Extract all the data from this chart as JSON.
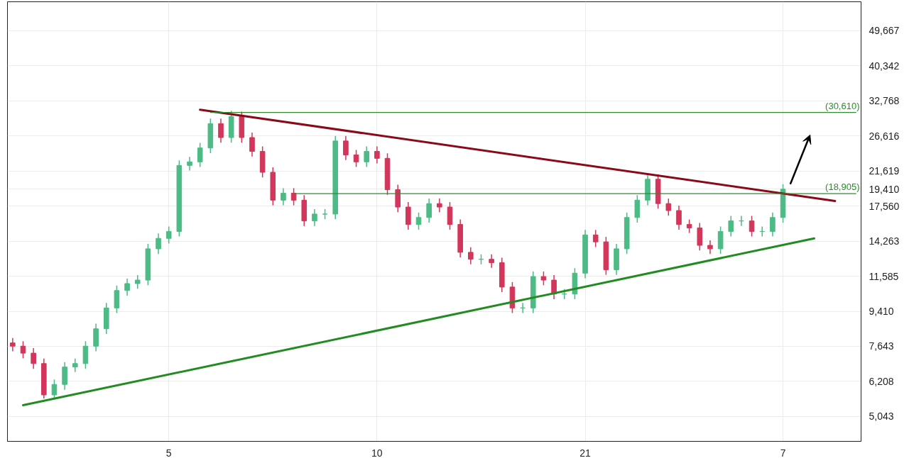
{
  "chart_data": {
    "type": "candlestick",
    "categories": [
      null,
      null,
      null,
      null,
      null,
      null,
      null,
      null,
      null,
      null,
      null,
      null,
      null,
      null,
      null,
      "5",
      null,
      null,
      null,
      null,
      null,
      null,
      null,
      null,
      null,
      null,
      null,
      null,
      null,
      null,
      null,
      null,
      null,
      null,
      null,
      "10",
      null,
      null,
      null,
      null,
      null,
      null,
      null,
      null,
      null,
      null,
      null,
      null,
      null,
      null,
      null,
      null,
      null,
      null,
      null,
      "21",
      null,
      null,
      null,
      null,
      null,
      null,
      null,
      null,
      null,
      null,
      null,
      null,
      null,
      null,
      null,
      null,
      null,
      null,
      "7",
      null,
      null,
      null,
      null,
      null,
      null,
      null
    ],
    "ohlc": [
      [
        7800,
        8030,
        7420,
        7650
      ],
      [
        7650,
        7880,
        7120,
        7340
      ],
      [
        7340,
        7560,
        6690,
        6900
      ],
      [
        6900,
        7110,
        5610,
        5730
      ],
      [
        5730,
        6280,
        5600,
        6097
      ],
      [
        6097,
        6960,
        5910,
        6760
      ],
      [
        6760,
        7110,
        6560,
        6900
      ],
      [
        6900,
        7880,
        6690,
        7650
      ],
      [
        7650,
        8740,
        7420,
        8481
      ],
      [
        8481,
        9890,
        8230,
        9598
      ],
      [
        9598,
        10960,
        9310,
        10640
      ],
      [
        10640,
        11420,
        10320,
        11090
      ],
      [
        11090,
        11660,
        10760,
        11321
      ],
      [
        11321,
        14040,
        10980,
        13630
      ],
      [
        13630,
        14930,
        13220,
        14499
      ],
      [
        14499,
        15560,
        14060,
        15109
      ],
      [
        15109,
        23020,
        14660,
        22350
      ],
      [
        22350,
        23510,
        21680,
        22830
      ],
      [
        22830,
        25540,
        22150,
        24792
      ],
      [
        24792,
        29500,
        24050,
        28640
      ],
      [
        28640,
        29500,
        25580,
        26370
      ],
      [
        26370,
        30900,
        25580,
        29850
      ],
      [
        29850,
        30750,
        25580,
        26370
      ],
      [
        26370,
        27160,
        23560,
        24290
      ],
      [
        24290,
        25020,
        20820,
        21460
      ],
      [
        21460,
        22100,
        17640,
        18190
      ],
      [
        18190,
        19530,
        17640,
        18960
      ],
      [
        18960,
        19530,
        17640,
        18190
      ],
      [
        18190,
        18740,
        15600,
        16080
      ],
      [
        16080,
        17250,
        15600,
        16750
      ],
      [
        16750,
        17250,
        16250,
        16750
      ],
      [
        16750,
        26610,
        16250,
        25835
      ],
      [
        25835,
        26610,
        23080,
        23790
      ],
      [
        23790,
        24500,
        22150,
        22830
      ],
      [
        22830,
        25020,
        22150,
        24290
      ],
      [
        24290,
        25020,
        22610,
        23310
      ],
      [
        23310,
        24010,
        18770,
        19355
      ],
      [
        19355,
        19940,
        16940,
        17460
      ],
      [
        17460,
        17980,
        15270,
        15746
      ],
      [
        15746,
        16900,
        15270,
        16411
      ],
      [
        16411,
        18360,
        15920,
        17822
      ],
      [
        17822,
        18360,
        16940,
        17460
      ],
      [
        17460,
        17980,
        15270,
        15746
      ],
      [
        15746,
        16220,
        12950,
        13349
      ],
      [
        13349,
        13750,
        12430,
        12810
      ],
      [
        12810,
        13190,
        12430,
        12810
      ],
      [
        12810,
        13190,
        12170,
        12550
      ],
      [
        12550,
        12930,
        10540,
        10863
      ],
      [
        10863,
        11190,
        9310,
        9598
      ],
      [
        9598,
        9890,
        9310,
        9598
      ],
      [
        9598,
        11910,
        9310,
        11560
      ],
      [
        11560,
        11910,
        10980,
        11321
      ],
      [
        11321,
        11660,
        10110,
        10424
      ],
      [
        10424,
        10740,
        10110,
        10424
      ],
      [
        10424,
        12150,
        10110,
        11796
      ],
      [
        11796,
        15240,
        11440,
        14800
      ],
      [
        14800,
        15240,
        13770,
        14200
      ],
      [
        14200,
        14630,
        11680,
        12040
      ],
      [
        12040,
        14040,
        11680,
        13630
      ],
      [
        13630,
        16900,
        13220,
        16411
      ],
      [
        16411,
        18740,
        15920,
        18190
      ],
      [
        18190,
        21210,
        17640,
        20590
      ],
      [
        20590,
        21210,
        17290,
        17822
      ],
      [
        17822,
        18360,
        16590,
        17101
      ],
      [
        17101,
        17610,
        15270,
        15746
      ],
      [
        15746,
        16220,
        14970,
        15430
      ],
      [
        15430,
        15890,
        13500,
        13914
      ],
      [
        13914,
        14330,
        13220,
        13630
      ],
      [
        13630,
        15560,
        13220,
        15109
      ],
      [
        15109,
        16560,
        14660,
        16080
      ],
      [
        16080,
        16560,
        15600,
        16080
      ],
      [
        16080,
        16560,
        14660,
        15109
      ],
      [
        15109,
        15560,
        14660,
        15109
      ],
      [
        15109,
        16900,
        14660,
        16411
      ],
      [
        16411,
        19990,
        15920,
        19410
      ],
      null,
      null,
      null,
      null,
      null,
      null,
      null
    ],
    "series": [
      {
        "type": "line",
        "color": "#8b0a1a",
        "values": [
          null,
          null,
          null,
          null,
          null,
          null,
          null,
          null,
          null,
          null,
          null,
          null,
          null,
          null,
          null,
          null,
          null,
          null,
          31100,
          null,
          null,
          null,
          null,
          null,
          null,
          null,
          null,
          null,
          null,
          null,
          null,
          null,
          null,
          null,
          null,
          null,
          null,
          null,
          null,
          null,
          null,
          null,
          null,
          null,
          null,
          null,
          null,
          null,
          null,
          null,
          null,
          null,
          null,
          null,
          null,
          null,
          null,
          null,
          null,
          null,
          null,
          null,
          null,
          null,
          null,
          null,
          null,
          null,
          null,
          null,
          null,
          null,
          null,
          null,
          null,
          null,
          null,
          null,
          null,
          18100,
          null,
          null
        ]
      },
      {
        "type": "line",
        "color": "#228b22",
        "values": [
          null,
          5390,
          null,
          null,
          null,
          null,
          null,
          null,
          null,
          null,
          null,
          null,
          null,
          null,
          null,
          null,
          null,
          null,
          null,
          null,
          null,
          null,
          null,
          null,
          null,
          null,
          null,
          null,
          null,
          null,
          null,
          null,
          null,
          null,
          null,
          null,
          null,
          null,
          null,
          null,
          null,
          null,
          null,
          null,
          null,
          null,
          null,
          null,
          null,
          null,
          null,
          null,
          null,
          null,
          null,
          null,
          null,
          null,
          null,
          null,
          null,
          null,
          null,
          null,
          null,
          null,
          null,
          null,
          null,
          null,
          null,
          null,
          null,
          null,
          null,
          null,
          null,
          14499,
          null,
          null,
          null,
          null
        ]
      },
      {
        "type": "line",
        "name": "(30,610)",
        "color": "#2e8b2e",
        "values": [
          null,
          null,
          null,
          null,
          null,
          null,
          null,
          null,
          null,
          null,
          null,
          null,
          null,
          null,
          null,
          null,
          null,
          null,
          null,
          30610,
          null,
          null,
          null,
          null,
          null,
          null,
          null,
          null,
          null,
          null,
          null,
          null,
          null,
          null,
          null,
          null,
          null,
          null,
          null,
          null,
          null,
          null,
          null,
          null,
          null,
          null,
          null,
          null,
          null,
          null,
          null,
          null,
          null,
          null,
          null,
          null,
          null,
          null,
          null,
          null,
          null,
          null,
          null,
          null,
          null,
          null,
          null,
          null,
          null,
          null,
          null,
          null,
          null,
          null,
          null,
          null,
          null,
          null,
          null,
          null,
          null,
          30610
        ]
      },
      {
        "type": "line",
        "name": "(18,905)",
        "color": "#2e8b2e",
        "values": [
          null,
          null,
          null,
          null,
          null,
          null,
          null,
          null,
          null,
          null,
          null,
          null,
          null,
          null,
          null,
          null,
          null,
          null,
          null,
          null,
          null,
          null,
          null,
          null,
          null,
          null,
          null,
          18905,
          null,
          null,
          null,
          null,
          null,
          null,
          null,
          null,
          null,
          null,
          null,
          null,
          null,
          null,
          null,
          null,
          null,
          null,
          null,
          null,
          null,
          null,
          null,
          null,
          null,
          null,
          null,
          null,
          null,
          null,
          null,
          null,
          null,
          null,
          null,
          null,
          null,
          null,
          null,
          null,
          null,
          null,
          null,
          null,
          null,
          null,
          null,
          null,
          null,
          null,
          null,
          null,
          null,
          18905
        ]
      }
    ],
    "log": "y",
    "grid": true,
    "ylim": [
      4350,
      59000
    ],
    "yticks": [
      {
        "value": 5043,
        "label": "5,043"
      },
      {
        "value": 6208,
        "label": "6,208"
      },
      {
        "value": 7643,
        "label": "7,643"
      },
      {
        "value": 9410,
        "label": "9,410"
      },
      {
        "value": 11585,
        "label": "11,585"
      },
      {
        "value": 14263,
        "label": "14,263"
      },
      {
        "value": 17560,
        "label": "17,560"
      },
      {
        "value": 19410,
        "label": "19,410"
      },
      {
        "value": 21619,
        "label": "21,619"
      },
      {
        "value": 26616,
        "label": "26,616"
      },
      {
        "value": 32768,
        "label": "32,768"
      },
      {
        "value": 40342,
        "label": "40,342"
      },
      {
        "value": 49667,
        "label": "49,667"
      }
    ]
  }
}
